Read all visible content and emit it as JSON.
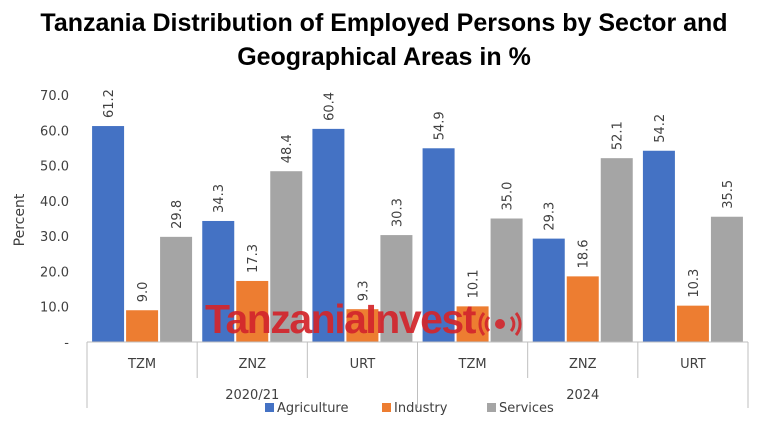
{
  "title_line1": "Tanzania Distribution of Employed Persons by Sector and",
  "title_line2": "Geographical Areas in %",
  "watermark": "TanzaniaInvest",
  "chart_data": {
    "type": "bar",
    "title": "Tanzania Distribution of Employed Persons by Sector and Geographical Areas in %",
    "ylabel": "Percent",
    "xlabel": "",
    "ylim": [
      0,
      70
    ],
    "ytick_labels": [
      "-",
      "10.0",
      "20.0",
      "30.0",
      "40.0",
      "50.0",
      "60.0",
      "70.0"
    ],
    "groups": [
      {
        "label": "2020/21",
        "categories": [
          "TZM",
          "ZNZ",
          "URT"
        ]
      },
      {
        "label": "2024",
        "categories": [
          "TZM",
          "ZNZ",
          "URT"
        ]
      }
    ],
    "categories": [
      "TZM",
      "ZNZ",
      "URT",
      "TZM",
      "ZNZ",
      "URT"
    ],
    "series": [
      {
        "name": "Agriculture",
        "color": "#4472c4",
        "values": [
          61.2,
          34.3,
          60.4,
          54.9,
          29.3,
          54.2
        ],
        "labels": [
          "61.2",
          "34.3",
          "60.4",
          "54.9",
          "29.3",
          "54.2"
        ]
      },
      {
        "name": "Industry",
        "color": "#ed7d31",
        "values": [
          9.0,
          17.3,
          9.3,
          10.1,
          18.6,
          10.3
        ],
        "labels": [
          "9.0",
          "17.3",
          "9.3",
          "10.1",
          "18.6",
          "10.3"
        ]
      },
      {
        "name": "Services",
        "color": "#a5a5a5",
        "values": [
          29.8,
          48.4,
          30.3,
          35.0,
          52.1,
          35.5
        ],
        "labels": [
          "29.8",
          "48.4",
          "30.3",
          "35.0",
          "52.1",
          "35.5"
        ]
      }
    ],
    "grid": false,
    "legend": "bottom"
  }
}
